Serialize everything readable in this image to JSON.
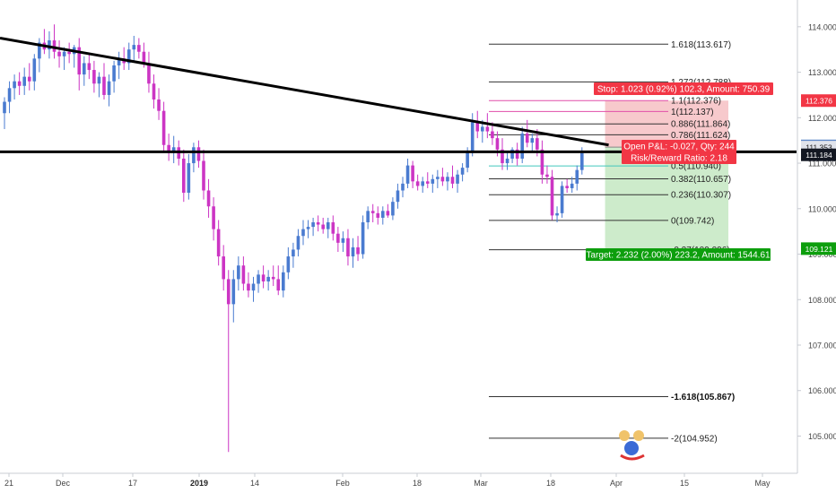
{
  "chart_data": {
    "type": "candlestick",
    "instrument_price_axis": {
      "ylim": [
        104.3,
        114.45
      ],
      "ticks": [
        "114.000",
        "113.000",
        "112.000",
        "111.000",
        "110.000",
        "109.000",
        "108.000",
        "107.000",
        "106.000",
        "105.000"
      ],
      "tick_values": [
        114,
        113,
        112,
        111,
        110,
        109,
        108,
        107,
        106,
        105
      ]
    },
    "time_axis": {
      "labels": [
        "21",
        "Dec",
        "17",
        "2019",
        "14",
        "Feb",
        "18",
        "Mar",
        "18",
        "Apr",
        "15",
        "May"
      ],
      "bold_labels": [
        "2019"
      ],
      "total_bars": 128
    },
    "candles": [
      {
        "o": 112.1,
        "h": 112.45,
        "l": 111.75,
        "c": 112.35
      },
      {
        "o": 112.35,
        "h": 112.8,
        "l": 112.1,
        "c": 112.65
      },
      {
        "o": 112.65,
        "h": 112.95,
        "l": 112.4,
        "c": 112.8
      },
      {
        "o": 112.8,
        "h": 113.0,
        "l": 112.5,
        "c": 112.7
      },
      {
        "o": 112.7,
        "h": 113.1,
        "l": 112.5,
        "c": 112.9
      },
      {
        "o": 112.9,
        "h": 113.2,
        "l": 112.6,
        "c": 112.8
      },
      {
        "o": 112.8,
        "h": 113.4,
        "l": 112.6,
        "c": 113.3
      },
      {
        "o": 113.3,
        "h": 113.75,
        "l": 113.0,
        "c": 113.65
      },
      {
        "o": 113.65,
        "h": 113.95,
        "l": 113.4,
        "c": 113.5
      },
      {
        "o": 113.5,
        "h": 113.9,
        "l": 113.3,
        "c": 113.7
      },
      {
        "o": 113.7,
        "h": 114.05,
        "l": 113.3,
        "c": 113.45
      },
      {
        "o": 113.45,
        "h": 113.7,
        "l": 113.1,
        "c": 113.35
      },
      {
        "o": 113.35,
        "h": 113.55,
        "l": 113.05,
        "c": 113.45
      },
      {
        "o": 113.45,
        "h": 113.65,
        "l": 113.2,
        "c": 113.4
      },
      {
        "o": 113.4,
        "h": 113.6,
        "l": 113.1,
        "c": 113.55
      },
      {
        "o": 113.55,
        "h": 113.75,
        "l": 112.6,
        "c": 112.95
      },
      {
        "o": 112.95,
        "h": 113.35,
        "l": 112.7,
        "c": 113.2
      },
      {
        "o": 113.2,
        "h": 113.4,
        "l": 112.85,
        "c": 113.05
      },
      {
        "o": 113.05,
        "h": 113.25,
        "l": 112.55,
        "c": 112.75
      },
      {
        "o": 112.75,
        "h": 113.0,
        "l": 112.45,
        "c": 112.9
      },
      {
        "o": 112.9,
        "h": 113.2,
        "l": 112.4,
        "c": 112.5
      },
      {
        "o": 112.5,
        "h": 112.95,
        "l": 112.25,
        "c": 112.8
      },
      {
        "o": 112.8,
        "h": 113.25,
        "l": 112.55,
        "c": 113.15
      },
      {
        "o": 113.15,
        "h": 113.45,
        "l": 112.85,
        "c": 113.3
      },
      {
        "o": 113.3,
        "h": 113.55,
        "l": 113.05,
        "c": 113.2
      },
      {
        "o": 113.2,
        "h": 113.65,
        "l": 113.05,
        "c": 113.5
      },
      {
        "o": 113.5,
        "h": 113.8,
        "l": 113.25,
        "c": 113.6
      },
      {
        "o": 113.6,
        "h": 113.75,
        "l": 113.3,
        "c": 113.45
      },
      {
        "o": 113.45,
        "h": 113.65,
        "l": 113.1,
        "c": 113.2
      },
      {
        "o": 113.2,
        "h": 113.45,
        "l": 112.55,
        "c": 112.75
      },
      {
        "o": 112.75,
        "h": 112.95,
        "l": 112.2,
        "c": 112.4
      },
      {
        "o": 112.4,
        "h": 112.65,
        "l": 111.95,
        "c": 112.15
      },
      {
        "o": 112.15,
        "h": 112.35,
        "l": 111.25,
        "c": 111.4
      },
      {
        "o": 111.4,
        "h": 111.65,
        "l": 111.05,
        "c": 111.25
      },
      {
        "o": 111.25,
        "h": 111.6,
        "l": 111.0,
        "c": 111.35
      },
      {
        "o": 111.35,
        "h": 111.5,
        "l": 110.95,
        "c": 111.1
      },
      {
        "o": 111.1,
        "h": 111.3,
        "l": 110.15,
        "c": 110.35
      },
      {
        "o": 110.35,
        "h": 111.2,
        "l": 110.2,
        "c": 111.0
      },
      {
        "o": 111.0,
        "h": 111.45,
        "l": 110.8,
        "c": 111.35
      },
      {
        "o": 111.35,
        "h": 111.5,
        "l": 110.9,
        "c": 111.05
      },
      {
        "o": 111.05,
        "h": 111.3,
        "l": 110.2,
        "c": 110.4
      },
      {
        "o": 110.4,
        "h": 110.65,
        "l": 109.8,
        "c": 110.05
      },
      {
        "o": 110.05,
        "h": 110.25,
        "l": 109.3,
        "c": 109.55
      },
      {
        "o": 109.55,
        "h": 109.75,
        "l": 108.75,
        "c": 108.95
      },
      {
        "o": 108.95,
        "h": 109.2,
        "l": 108.2,
        "c": 108.45
      },
      {
        "o": 108.45,
        "h": 108.65,
        "l": 104.65,
        "c": 107.9
      },
      {
        "o": 107.9,
        "h": 108.65,
        "l": 107.5,
        "c": 108.45
      },
      {
        "o": 108.45,
        "h": 108.95,
        "l": 108.2,
        "c": 108.75
      },
      {
        "o": 108.75,
        "h": 108.95,
        "l": 108.2,
        "c": 108.35
      },
      {
        "o": 108.35,
        "h": 108.6,
        "l": 108.05,
        "c": 108.2
      },
      {
        "o": 108.2,
        "h": 108.5,
        "l": 107.95,
        "c": 108.35
      },
      {
        "o": 108.35,
        "h": 108.65,
        "l": 108.15,
        "c": 108.55
      },
      {
        "o": 108.55,
        "h": 108.75,
        "l": 108.25,
        "c": 108.4
      },
      {
        "o": 108.4,
        "h": 108.65,
        "l": 108.2,
        "c": 108.5
      },
      {
        "o": 108.5,
        "h": 108.75,
        "l": 108.3,
        "c": 108.45
      },
      {
        "o": 108.45,
        "h": 108.75,
        "l": 108.1,
        "c": 108.2
      },
      {
        "o": 108.2,
        "h": 108.75,
        "l": 108.05,
        "c": 108.6
      },
      {
        "o": 108.6,
        "h": 109.15,
        "l": 108.45,
        "c": 108.95
      },
      {
        "o": 108.95,
        "h": 109.25,
        "l": 108.7,
        "c": 109.1
      },
      {
        "o": 109.1,
        "h": 109.55,
        "l": 108.95,
        "c": 109.4
      },
      {
        "o": 109.4,
        "h": 109.75,
        "l": 109.2,
        "c": 109.55
      },
      {
        "o": 109.55,
        "h": 109.75,
        "l": 109.35,
        "c": 109.6
      },
      {
        "o": 109.6,
        "h": 109.8,
        "l": 109.4,
        "c": 109.7
      },
      {
        "o": 109.7,
        "h": 109.85,
        "l": 109.5,
        "c": 109.65
      },
      {
        "o": 109.65,
        "h": 109.8,
        "l": 109.45,
        "c": 109.55
      },
      {
        "o": 109.55,
        "h": 109.8,
        "l": 109.35,
        "c": 109.7
      },
      {
        "o": 109.7,
        "h": 109.85,
        "l": 109.3,
        "c": 109.45
      },
      {
        "o": 109.45,
        "h": 109.6,
        "l": 109.05,
        "c": 109.25
      },
      {
        "o": 109.25,
        "h": 109.5,
        "l": 109.05,
        "c": 109.35
      },
      {
        "o": 109.35,
        "h": 109.55,
        "l": 108.75,
        "c": 108.95
      },
      {
        "o": 108.95,
        "h": 109.35,
        "l": 108.7,
        "c": 109.15
      },
      {
        "o": 109.15,
        "h": 109.4,
        "l": 108.85,
        "c": 109.0
      },
      {
        "o": 109.0,
        "h": 109.85,
        "l": 108.9,
        "c": 109.7
      },
      {
        "o": 109.7,
        "h": 110.05,
        "l": 109.55,
        "c": 109.95
      },
      {
        "o": 109.95,
        "h": 110.1,
        "l": 109.7,
        "c": 109.9
      },
      {
        "o": 109.9,
        "h": 110.05,
        "l": 109.65,
        "c": 109.8
      },
      {
        "o": 109.8,
        "h": 110.05,
        "l": 109.65,
        "c": 109.95
      },
      {
        "o": 109.95,
        "h": 110.1,
        "l": 109.8,
        "c": 109.85
      },
      {
        "o": 109.85,
        "h": 110.25,
        "l": 109.75,
        "c": 110.15
      },
      {
        "o": 110.15,
        "h": 110.55,
        "l": 110.0,
        "c": 110.4
      },
      {
        "o": 110.4,
        "h": 110.7,
        "l": 110.25,
        "c": 110.55
      },
      {
        "o": 110.55,
        "h": 111.1,
        "l": 110.45,
        "c": 110.95
      },
      {
        "o": 110.95,
        "h": 111.05,
        "l": 110.45,
        "c": 110.6
      },
      {
        "o": 110.6,
        "h": 110.75,
        "l": 110.4,
        "c": 110.5
      },
      {
        "o": 110.5,
        "h": 110.7,
        "l": 110.35,
        "c": 110.6
      },
      {
        "o": 110.6,
        "h": 110.8,
        "l": 110.45,
        "c": 110.55
      },
      {
        "o": 110.55,
        "h": 110.75,
        "l": 110.35,
        "c": 110.65
      },
      {
        "o": 110.65,
        "h": 110.85,
        "l": 110.45,
        "c": 110.7
      },
      {
        "o": 110.7,
        "h": 110.9,
        "l": 110.5,
        "c": 110.6
      },
      {
        "o": 110.6,
        "h": 110.8,
        "l": 110.4,
        "c": 110.7
      },
      {
        "o": 110.7,
        "h": 110.95,
        "l": 110.45,
        "c": 110.55
      },
      {
        "o": 110.55,
        "h": 110.85,
        "l": 110.35,
        "c": 110.75
      },
      {
        "o": 110.75,
        "h": 111.0,
        "l": 110.6,
        "c": 110.9
      },
      {
        "o": 110.9,
        "h": 111.35,
        "l": 110.8,
        "c": 111.25
      },
      {
        "o": 111.25,
        "h": 112.1,
        "l": 111.15,
        "c": 111.9
      },
      {
        "o": 111.9,
        "h": 112.15,
        "l": 111.55,
        "c": 111.7
      },
      {
        "o": 111.7,
        "h": 111.95,
        "l": 111.45,
        "c": 111.8
      },
      {
        "o": 111.8,
        "h": 112.1,
        "l": 111.55,
        "c": 111.7
      },
      {
        "o": 111.7,
        "h": 111.9,
        "l": 111.4,
        "c": 111.55
      },
      {
        "o": 111.55,
        "h": 111.7,
        "l": 111.15,
        "c": 111.3
      },
      {
        "o": 111.3,
        "h": 111.55,
        "l": 110.85,
        "c": 111.0
      },
      {
        "o": 111.0,
        "h": 111.25,
        "l": 110.85,
        "c": 111.1
      },
      {
        "o": 111.1,
        "h": 111.35,
        "l": 111.0,
        "c": 111.3
      },
      {
        "o": 111.3,
        "h": 111.45,
        "l": 110.95,
        "c": 111.1
      },
      {
        "o": 111.1,
        "h": 111.8,
        "l": 111.0,
        "c": 111.65
      },
      {
        "o": 111.65,
        "h": 111.95,
        "l": 111.35,
        "c": 111.45
      },
      {
        "o": 111.45,
        "h": 111.65,
        "l": 111.25,
        "c": 111.55
      },
      {
        "o": 111.55,
        "h": 111.75,
        "l": 111.15,
        "c": 111.3
      },
      {
        "o": 111.3,
        "h": 111.5,
        "l": 110.55,
        "c": 110.75
      },
      {
        "o": 110.75,
        "h": 110.95,
        "l": 110.55,
        "c": 110.7
      },
      {
        "o": 110.7,
        "h": 110.85,
        "l": 109.75,
        "c": 109.85
      },
      {
        "o": 109.85,
        "h": 110.05,
        "l": 109.7,
        "c": 109.9
      },
      {
        "o": 109.9,
        "h": 110.6,
        "l": 109.8,
        "c": 110.5
      },
      {
        "o": 110.5,
        "h": 110.65,
        "l": 110.35,
        "c": 110.45
      },
      {
        "o": 110.45,
        "h": 110.7,
        "l": 110.35,
        "c": 110.55
      },
      {
        "o": 110.55,
        "h": 110.95,
        "l": 110.4,
        "c": 110.85
      },
      {
        "o": 110.85,
        "h": 111.35,
        "l": 110.75,
        "c": 111.22
      }
    ],
    "fib_retracement": {
      "levels": [
        {
          "label": "1.618(113.617)",
          "value": 113.617
        },
        {
          "label": "1.272(112.788)",
          "value": 112.788
        },
        {
          "label": "1.1(112.376)",
          "value": 112.376
        },
        {
          "label": "1(112.137)",
          "value": 112.137
        },
        {
          "label": "0.886(111.864)",
          "value": 111.864
        },
        {
          "label": "0.786(111.624)",
          "value": 111.624
        },
        {
          "label": "0.5(110.940)",
          "value": 110.94
        },
        {
          "label": "0.382(110.657)",
          "value": 110.657
        },
        {
          "label": "0.236(110.307)",
          "value": 110.307
        },
        {
          "label": "0(109.742)",
          "value": 109.742
        },
        {
          "label": "-0.27(109.096)",
          "value": 109.096
        },
        {
          "label": "-1.618(105.867)",
          "value": 105.867
        },
        {
          "label": "-2(104.952)",
          "value": 104.952
        }
      ],
      "bold_labels": [
        "-1.618(105.867)"
      ],
      "highlight_colors": {
        "1.1(112.376)": "#e14ea9",
        "1(112.137)": "#e14ea9",
        "0.5(110.940)": "#42c6bd"
      }
    },
    "trendline": {
      "from": {
        "bar": 0,
        "price": 113.75
      },
      "to": {
        "bar": 121,
        "price": 111.4
      }
    },
    "horizontal_line": {
      "price": 111.25
    },
    "position": {
      "entry": 111.353,
      "stop": 112.376,
      "target": 109.121,
      "stop_box": "Stop: 1.023 (0.92%) 102.3, Amount: 750.39",
      "pnl_box_line1": "Open P&L: -0.027, Qty: 244",
      "pnl_box_line2": "Risk/Reward Ratio: 2.18",
      "target_box": "Target: 2.232 (2.00%) 223.2, Amount: 1544.61"
    },
    "price_tags": [
      {
        "label": "112.376",
        "value": 112.376,
        "color": "#f23645",
        "text": "light"
      },
      {
        "label": "111.380",
        "value": 111.38,
        "color": "#5d88c9",
        "text": "light"
      },
      {
        "label": "111.353",
        "value": 111.353,
        "color": "#e0e3eb",
        "text": "dark"
      },
      {
        "label": "111.184",
        "value": 111.184,
        "color": "#131722",
        "text": "light"
      },
      {
        "label": "109.121",
        "value": 109.121,
        "color": "#0d9e0d",
        "text": "light"
      }
    ],
    "colors": {
      "up": "#4a7bd0",
      "down": "#cc35c4",
      "stop_zone": "#f7c9cc",
      "target_zone": "#cdebcb",
      "stop_box": "#f23645",
      "target_box": "#0d9e0d"
    },
    "grid": false
  }
}
